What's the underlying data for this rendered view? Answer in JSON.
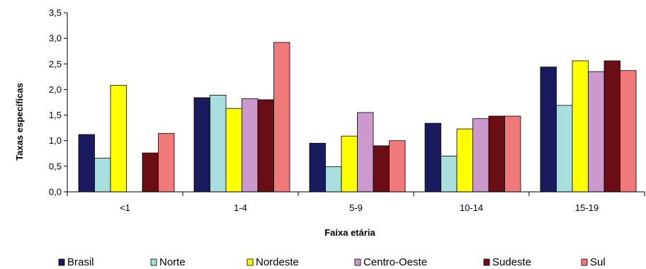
{
  "chart_data": {
    "type": "bar",
    "title": "",
    "xlabel": "Faixa etária",
    "ylabel": "Taxas específicas",
    "ylim": [
      0,
      3.5
    ],
    "yticks": [
      "0,0",
      "0,5",
      "1,0",
      "1,5",
      "2,0",
      "2,5",
      "3,0",
      "3,5"
    ],
    "ytick_values": [
      0,
      0.5,
      1.0,
      1.5,
      2.0,
      2.5,
      3.0,
      3.5
    ],
    "grid": false,
    "legend_position": "bottom",
    "categories": [
      "<1",
      "1-4",
      "5-9",
      "10-14",
      "15-19"
    ],
    "series": [
      {
        "name": "Brasil",
        "color": "#1a1a5e",
        "values": [
          1.12,
          1.84,
          0.95,
          1.34,
          2.44
        ]
      },
      {
        "name": "Norte",
        "color": "#a8dede",
        "values": [
          0.66,
          1.89,
          0.49,
          0.7,
          1.69
        ]
      },
      {
        "name": "Nordeste",
        "color": "#ffff00",
        "values": [
          2.08,
          1.63,
          1.09,
          1.23,
          2.56
        ]
      },
      {
        "name": "Centro-Oeste",
        "color": "#cc99cc",
        "values": [
          null,
          1.82,
          1.55,
          1.43,
          2.35
        ]
      },
      {
        "name": "Sudeste",
        "color": "#6b0e14",
        "values": [
          0.76,
          1.8,
          0.9,
          1.48,
          2.56
        ]
      },
      {
        "name": "Sul",
        "color": "#f07a7a",
        "values": [
          1.14,
          2.92,
          1.0,
          1.48,
          2.37
        ]
      }
    ]
  }
}
